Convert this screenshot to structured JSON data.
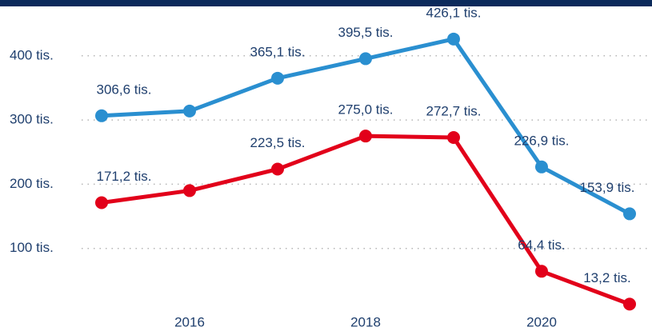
{
  "chart_data": {
    "type": "line",
    "x": [
      2015,
      2016,
      2017,
      2018,
      2019,
      2020,
      2021
    ],
    "series": [
      {
        "color": "#2a8fd0",
        "values": [
          306.6,
          314,
          365.1,
          395.5,
          426.1,
          226.9,
          153.9
        ],
        "value_labels": [
          "306,6 tis.",
          null,
          "365,1 tis.",
          "395,5 tis.",
          "426,1 tis.",
          "226,9 tis.",
          "153,9 tis."
        ]
      },
      {
        "color": "#e2001a",
        "values": [
          171.2,
          190,
          223.5,
          275.0,
          272.7,
          64.4,
          13.2
        ],
        "value_labels": [
          "171,2 tis.",
          null,
          "223,5 tis.",
          "275,0 tis.",
          "272,7 tis.",
          "64,4 tis.",
          "13,2 tis."
        ]
      }
    ],
    "xlim": [
      2014.5,
      2021.2
    ],
    "xticks": [
      2016,
      2018,
      2020
    ],
    "ylim": [
      0,
      440
    ],
    "yticks": [
      {
        "value": 100,
        "label": "100 tis."
      },
      {
        "value": 200,
        "label": "200 tis."
      },
      {
        "value": 300,
        "label": "300 tis."
      },
      {
        "value": 400,
        "label": "400 tis."
      }
    ],
    "grid": true
  }
}
